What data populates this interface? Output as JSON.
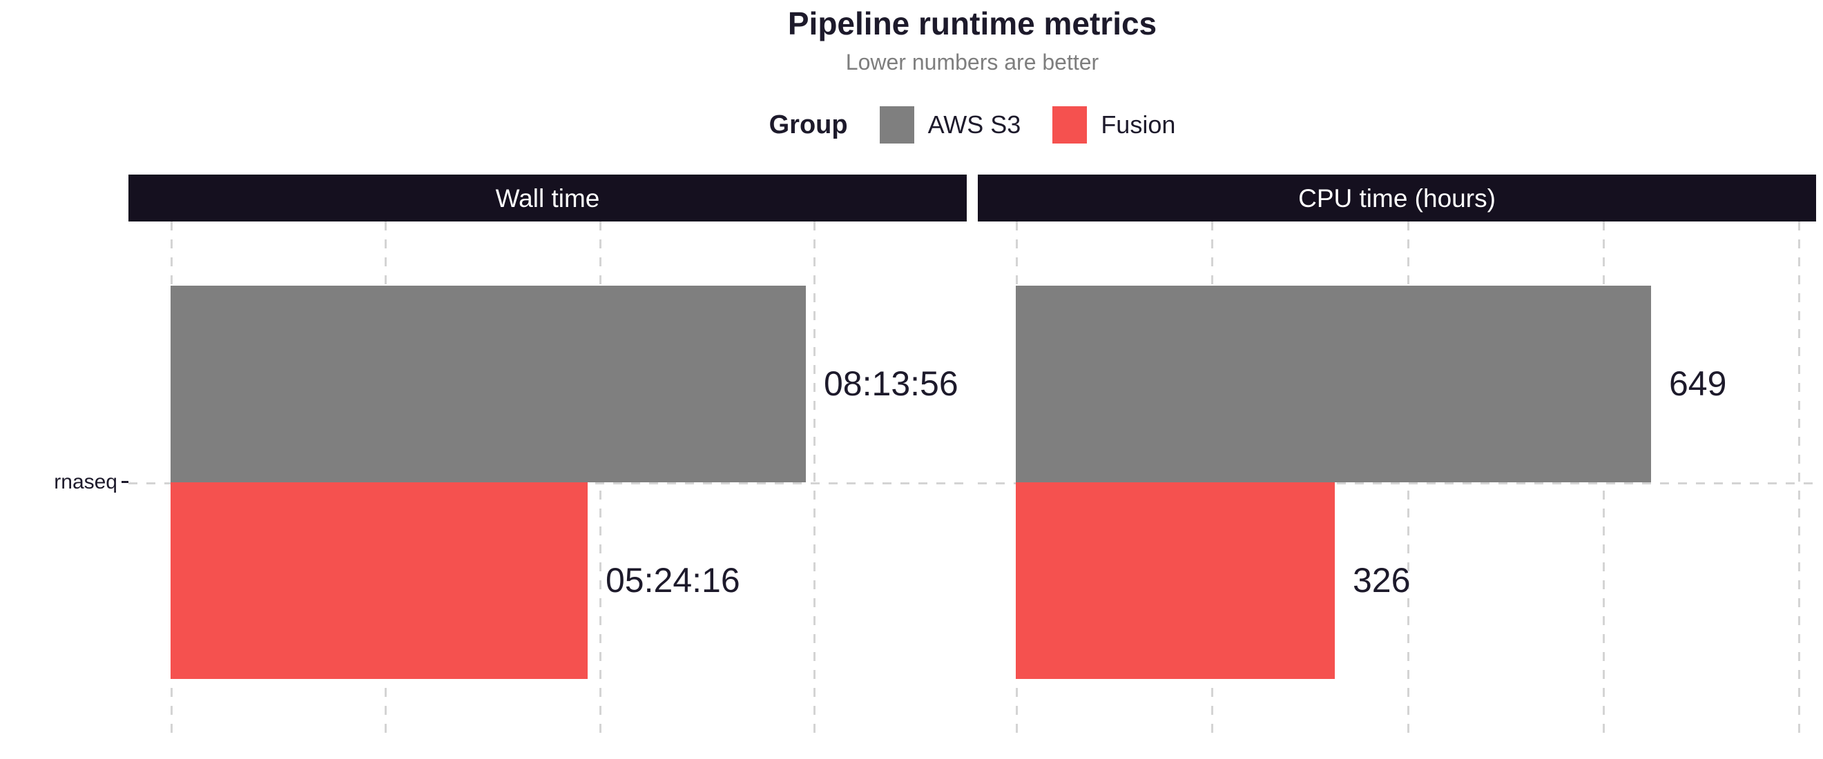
{
  "chart_data": {
    "type": "bar",
    "orientation": "horizontal",
    "title": "Pipeline runtime metrics",
    "subtitle": "Lower numbers are better",
    "legend": {
      "title": "Group",
      "position": "top",
      "entries": [
        {
          "label": "AWS S3",
          "color": "#7f7f7f"
        },
        {
          "label": "Fusion",
          "color": "#f5514f"
        }
      ]
    },
    "categories": [
      "rnaseq"
    ],
    "panels": [
      {
        "title": "Wall time",
        "unit": "seconds",
        "xlim": [
          0,
          37150
        ],
        "grid_values": [
          0,
          10000,
          20000,
          30000
        ],
        "series": [
          {
            "name": "AWS S3",
            "value": 29636,
            "label": "08:13:56",
            "color": "#7f7f7f"
          },
          {
            "name": "Fusion",
            "value": 19456,
            "label": "05:24:16",
            "color": "#f5514f"
          }
        ]
      },
      {
        "title": "CPU time (hours)",
        "unit": "hours",
        "xlim": [
          0,
          818
        ],
        "grid_values": [
          0,
          200,
          400,
          600,
          800
        ],
        "series": [
          {
            "name": "AWS S3",
            "value": 649,
            "label": "649",
            "color": "#7f7f7f"
          },
          {
            "name": "Fusion",
            "value": 326,
            "label": "326",
            "color": "#f5514f"
          }
        ]
      }
    ],
    "layout": {
      "grid_style": "dashed",
      "x_tick_labels_visible": false,
      "zero_frac": [
        0.0502,
        0.0453
      ],
      "bar_top_frac": 0.1233,
      "bar_height_frac": 0.378
    }
  },
  "colors": {
    "strip_background": "#15101f",
    "strip_text": "#ffffff",
    "text_dark": "#1d1a2b",
    "subtitle_gray": "#7e7e7e",
    "gridline": "#d4d4d4",
    "axis": "#1d1a2b",
    "bar_gray": "#7f7f7f",
    "bar_red": "#f5514f"
  }
}
